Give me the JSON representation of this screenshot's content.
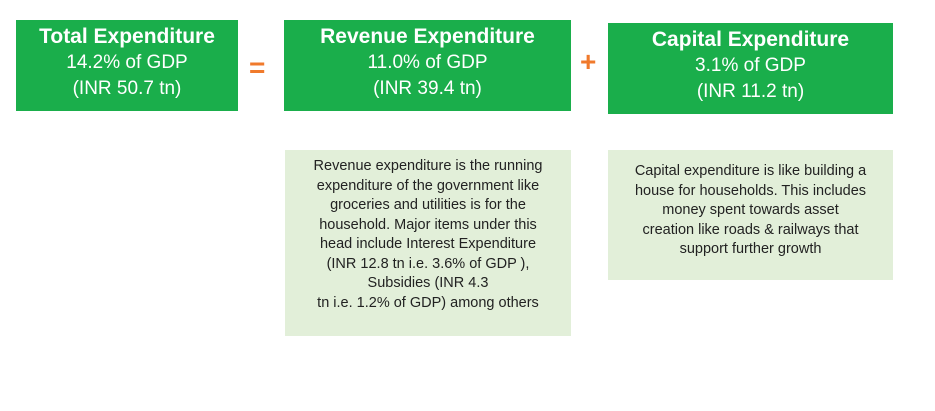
{
  "total": {
    "title": "Total Expenditure",
    "pct": "14.2% of GDP",
    "amount": "(INR 50.7 tn)"
  },
  "revenue": {
    "title": "Revenue Expenditure",
    "pct": "11.0% of GDP",
    "amount": "(INR 39.4 tn)",
    "note": "Revenue expenditure is the running\nexpenditure of the government like\ngroceries and utilities is for the\nhousehold. Major items under this\nhead include Interest Expenditure\n(INR 12.8 tn i.e. 3.6% of GDP ),\nSubsidies (INR 4.3\ntn i.e. 1.2% of GDP) among others"
  },
  "capital": {
    "title": "Capital Expenditure",
    "pct": "3.1% of GDP",
    "amount": "(INR 11.2 tn)",
    "note": "Capital expenditure is like building a\nhouse for households. This includes\nmoney spent towards asset\ncreation like roads & railways that\nsupport further growth"
  },
  "operators": {
    "equals": "=",
    "plus": "+"
  },
  "colors": {
    "box_green": "#1aae4b",
    "operator_orange": "#f07a2c",
    "note_background": "#e2efd9"
  }
}
